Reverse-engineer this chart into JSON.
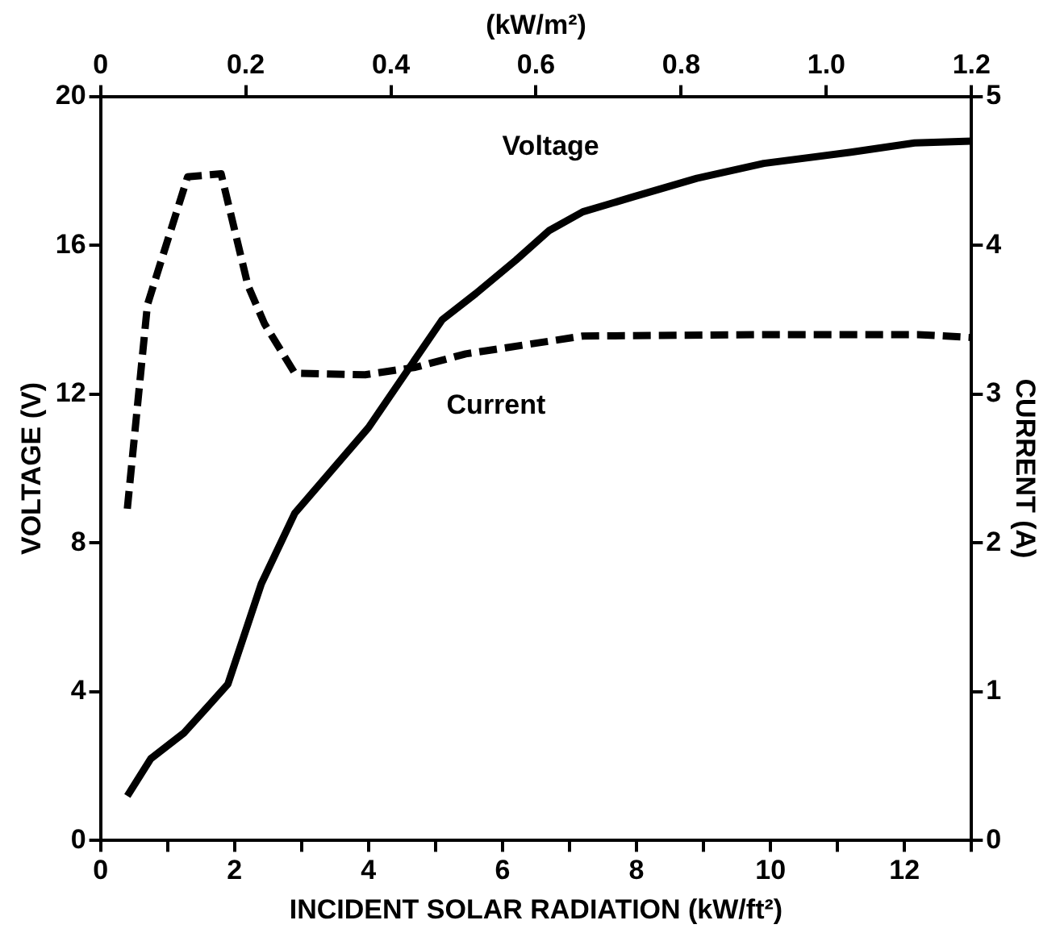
{
  "chart_data": {
    "type": "line",
    "xlabel": "INCIDENT SOLAR RADIATION (kW/ft²)",
    "ylabel": "VOLTAGE (V)",
    "y2label": "CURRENT (A)",
    "x2label": "(kW/m²)",
    "xlim": [
      0,
      13
    ],
    "xticks": [
      0,
      {
        "value": 1,
        "label": null
      },
      2,
      {
        "value": 3,
        "label": null
      },
      4,
      {
        "value": 5,
        "label": null
      },
      6,
      {
        "value": 7,
        "label": null
      },
      8,
      {
        "value": 9,
        "label": null
      },
      10,
      {
        "value": 11,
        "label": null
      },
      12,
      {
        "value": 13,
        "label": null
      }
    ],
    "x2lim": [
      0,
      1.2
    ],
    "x2ticks": [
      0,
      0.2,
      0.4,
      0.6,
      0.8,
      {
        "value": 1,
        "label": "1.0"
      },
      1.2
    ],
    "ylim": [
      0,
      20
    ],
    "yticks": [
      0,
      4,
      8,
      12,
      16,
      20
    ],
    "y2lim": [
      0,
      5
    ],
    "y2ticks": [
      0,
      1,
      2,
      3,
      4,
      5
    ],
    "grid": false,
    "legend": false,
    "marker": "none",
    "series": [
      {
        "name": "Voltage",
        "color": "#000000",
        "line_style": "solid",
        "x": [
          0.4,
          0.75,
          1.25,
          1.9,
          2.4,
          2.9,
          4.0,
          5.1,
          5.6,
          6.2,
          6.7,
          7.2,
          7.95,
          8.9,
          9.4,
          9.9,
          11.2,
          12.15,
          13
        ],
        "values": [
          1.2,
          2.2,
          2.9,
          4.2,
          6.9,
          8.8,
          11.1,
          14.0,
          14.7,
          15.6,
          16.4,
          16.9,
          17.3,
          17.8,
          18.0,
          18.2,
          18.5,
          18.75,
          18.8
        ]
      },
      {
        "name": "Current",
        "color": "#000000",
        "line_style": "dashed",
        "axis": "y2",
        "x": [
          0.4,
          0.7,
          0.95,
          1.3,
          1.8,
          2.2,
          2.45,
          2.9,
          3.95,
          4.7,
          5.45,
          7.2,
          9.95,
          12.2,
          13
        ],
        "values": [
          2.23,
          3.6,
          3.96,
          4.46,
          4.48,
          3.73,
          3.47,
          3.14,
          3.13,
          3.18,
          3.27,
          3.39,
          3.4,
          3.4,
          3.38
        ]
      }
    ]
  }
}
